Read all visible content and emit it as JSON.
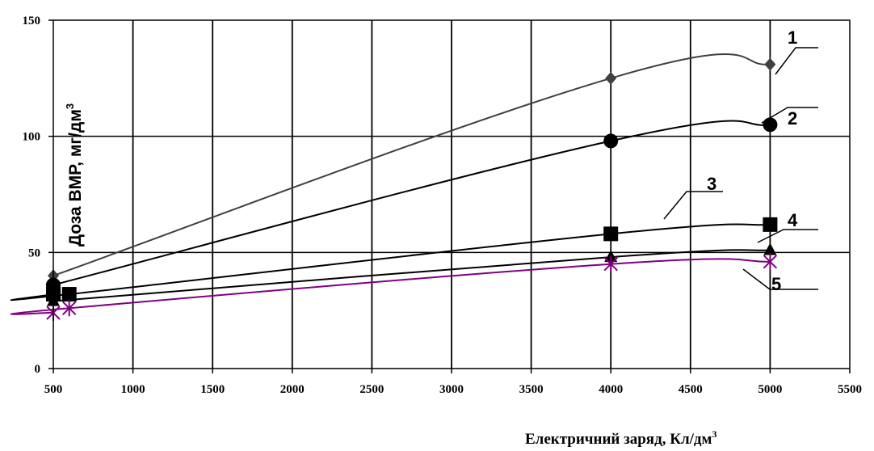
{
  "chart_data": {
    "type": "line",
    "xlabel": "Електричний заряд, Кл/дм",
    "xlabel_sup": "3",
    "ylabel": "Доза ВМР, мг/дм",
    "ylabel_sup": "3",
    "xlim": [
      500,
      5500
    ],
    "ylim": [
      0,
      150
    ],
    "x_ticks": [
      "500",
      "1000",
      "1500",
      "2000",
      "2500",
      "3000",
      "3500",
      "4000",
      "4500",
      "5000",
      "5500"
    ],
    "y_ticks": [
      "0",
      "50",
      "100",
      "150"
    ],
    "grid": {
      "vertical": true,
      "horizontal": true
    },
    "legend": "none",
    "series": [
      {
        "label": "1",
        "marker": "diamond",
        "color": "#404040",
        "x": [
          500,
          4000,
          5000
        ],
        "y": [
          40,
          125,
          131
        ]
      },
      {
        "label": "2",
        "marker": "circle",
        "color": "#000000",
        "x": [
          500,
          4000,
          5000
        ],
        "y": [
          36,
          98,
          105
        ]
      },
      {
        "label": "3",
        "marker": "square",
        "color": "#000000",
        "x": [
          500,
          600,
          4000,
          5000
        ],
        "y": [
          32,
          32,
          58,
          62
        ]
      },
      {
        "label": "4",
        "marker": "triangle",
        "color": "#000000",
        "x": [
          500,
          4000,
          5000
        ],
        "y": [
          29,
          48,
          51
        ]
      },
      {
        "label": "5",
        "marker": "star",
        "color": "#800080",
        "x": [
          500,
          600,
          4000,
          5000
        ],
        "y": [
          24,
          26,
          45,
          46
        ]
      }
    ]
  }
}
